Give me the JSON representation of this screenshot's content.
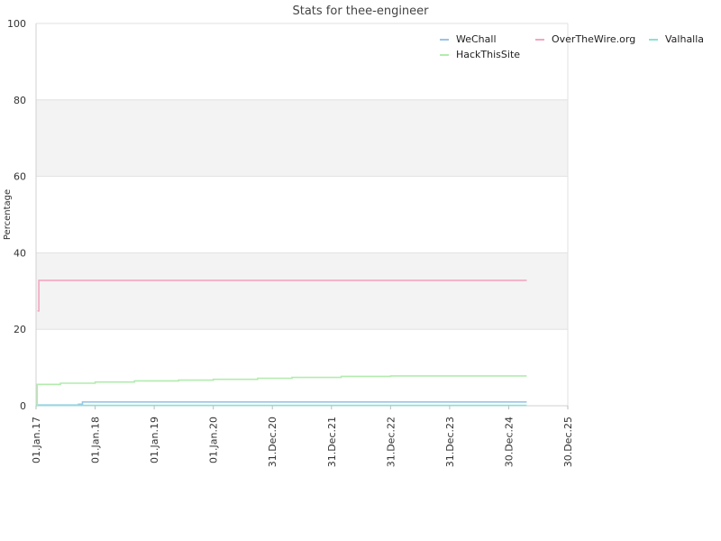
{
  "chart_data": {
    "type": "line",
    "title": "Stats for thee-engineer",
    "xlabel": "",
    "ylabel": "Percentage",
    "ylim": [
      0,
      100
    ],
    "yticks": [
      0,
      20,
      40,
      60,
      80,
      100
    ],
    "xlim": [
      "2017-01-01",
      "2025-12-30"
    ],
    "xticks": [
      {
        "date": "2017-01-01",
        "label": "01.Jan.17"
      },
      {
        "date": "2018-01-01",
        "label": "01.Jan.18"
      },
      {
        "date": "2019-01-01",
        "label": "01.Jan.19"
      },
      {
        "date": "2020-01-01",
        "label": "01.Jan.20"
      },
      {
        "date": "2020-12-31",
        "label": "31.Dec.20"
      },
      {
        "date": "2021-12-31",
        "label": "31.Dec.21"
      },
      {
        "date": "2022-12-31",
        "label": "31.Dec.22"
      },
      {
        "date": "2023-12-31",
        "label": "31.Dec.23"
      },
      {
        "date": "2024-12-30",
        "label": "30.Dec.24"
      },
      {
        "date": "2025-12-30",
        "label": "30.Dec.25"
      }
    ],
    "grid": true,
    "legend_position": "top-right",
    "step": true,
    "series": [
      {
        "name": "WeChall",
        "color": "#9ac4e6",
        "points": [
          [
            "2017-01-01",
            0.2
          ],
          [
            "2017-09-20",
            0.4
          ],
          [
            "2017-10-15",
            1.0
          ],
          [
            "2025-04-20",
            1.0
          ]
        ]
      },
      {
        "name": "OverTheWire.org",
        "color": "#f4a6c0",
        "points": [
          [
            "2017-01-10",
            24.8
          ],
          [
            "2017-01-18",
            32.8
          ],
          [
            "2025-04-20",
            32.8
          ]
        ]
      },
      {
        "name": "Valhalla",
        "color": "#8ce0d6",
        "points": [
          [
            "2017-01-01",
            0.1
          ],
          [
            "2025-04-20",
            0.1
          ]
        ]
      },
      {
        "name": "HackThisSite",
        "color": "#b2ecae",
        "points": [
          [
            "2017-01-05",
            0.0
          ],
          [
            "2017-01-08",
            5.6
          ],
          [
            "2017-06-01",
            5.9
          ],
          [
            "2018-01-01",
            6.2
          ],
          [
            "2018-09-01",
            6.5
          ],
          [
            "2019-06-01",
            6.7
          ],
          [
            "2020-01-01",
            6.9
          ],
          [
            "2020-10-01",
            7.2
          ],
          [
            "2021-05-01",
            7.4
          ],
          [
            "2022-03-01",
            7.7
          ],
          [
            "2023-01-01",
            7.8
          ],
          [
            "2025-04-20",
            7.8
          ]
        ]
      }
    ]
  }
}
